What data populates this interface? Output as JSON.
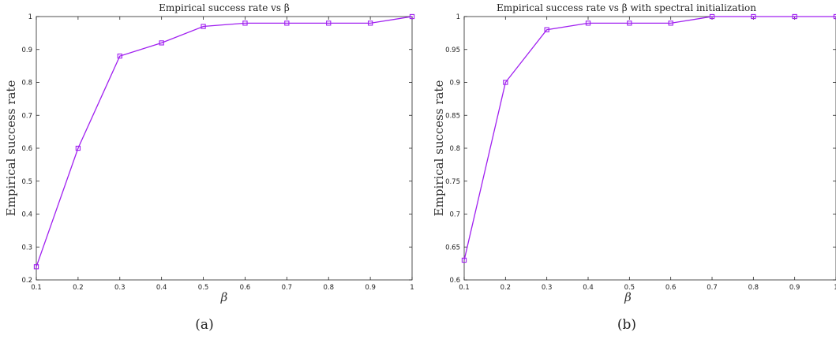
{
  "chart_data": [
    {
      "type": "line",
      "title": "Empirical success rate vs β",
      "xlabel": "β",
      "ylabel": "Empirical success rate",
      "caption": "(a)",
      "xlim": [
        0.1,
        1
      ],
      "ylim": [
        0.2,
        1
      ],
      "xticks": [
        "0.1",
        "0.2",
        "0.3",
        "0.4",
        "0.5",
        "0.6",
        "0.7",
        "0.8",
        "0.9",
        "1"
      ],
      "yticks": [
        "0.2",
        "0.3",
        "0.4",
        "0.5",
        "0.6",
        "0.7",
        "0.8",
        "0.9",
        "1"
      ],
      "grid": false,
      "series": [
        {
          "color": "#a020f0",
          "marker": "square",
          "x": [
            0.1,
            0.2,
            0.3,
            0.4,
            0.5,
            0.6,
            0.7,
            0.8,
            0.9,
            1.0
          ],
          "values": [
            0.24,
            0.6,
            0.88,
            0.92,
            0.97,
            0.98,
            0.98,
            0.98,
            0.98,
            1.0
          ]
        }
      ]
    },
    {
      "type": "line",
      "title": "Empirical success rate vs β with spectral initialization",
      "xlabel": "β",
      "ylabel": "Empirical success rate",
      "caption": "(b)",
      "xlim": [
        0.1,
        1
      ],
      "ylim": [
        0.6,
        1
      ],
      "xticks": [
        "0.1",
        "0.2",
        "0.3",
        "0.4",
        "0.5",
        "0.6",
        "0.7",
        "0.8",
        "0.9",
        "1"
      ],
      "yticks": [
        "0.6",
        "0.65",
        "0.7",
        "0.75",
        "0.8",
        "0.85",
        "0.9",
        "0.95",
        "1"
      ],
      "grid": false,
      "series": [
        {
          "color": "#a020f0",
          "marker": "square",
          "x": [
            0.1,
            0.2,
            0.3,
            0.4,
            0.5,
            0.6,
            0.7,
            0.8,
            0.9,
            1.0
          ],
          "values": [
            0.63,
            0.9,
            0.98,
            0.99,
            0.99,
            0.99,
            1.0,
            1.0,
            1.0,
            1.0
          ]
        }
      ]
    }
  ]
}
